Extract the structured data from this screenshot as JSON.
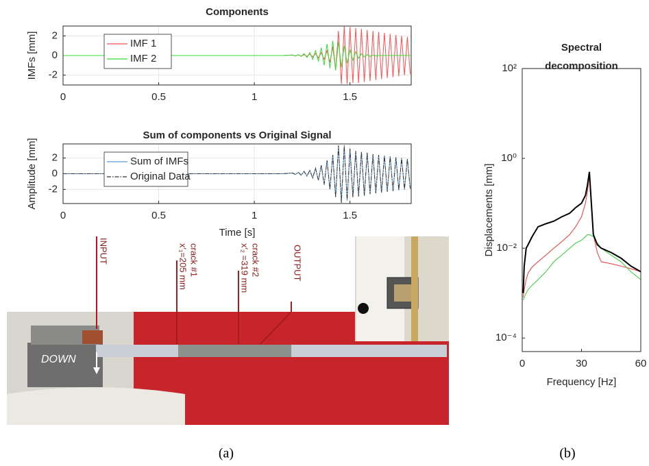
{
  "chart_data": [
    {
      "type": "line",
      "title": "Components",
      "ylabel": "IMFs [mm]",
      "x": [
        0,
        0.5,
        1,
        1.15,
        1.2,
        1.215,
        1.23,
        1.245,
        1.26,
        1.275,
        1.29,
        1.305,
        1.32,
        1.335,
        1.35,
        1.365,
        1.38,
        1.395,
        1.41,
        1.425,
        1.44,
        1.455,
        1.47,
        1.485,
        1.5,
        1.515,
        1.53,
        1.545,
        1.56,
        1.575,
        1.59,
        1.605,
        1.62,
        1.635,
        1.65,
        1.665,
        1.68,
        1.695,
        1.71,
        1.725,
        1.74,
        1.755,
        1.77,
        1.785,
        1.8,
        1.815
      ],
      "series": [
        {
          "name": "IMF 1",
          "color": "#ff4d4d",
          "values": [
            0,
            0,
            0,
            0,
            0.05,
            -0.05,
            0.08,
            -0.08,
            0.1,
            -0.1,
            0.15,
            -0.15,
            0.2,
            -0.25,
            0.3,
            -0.4,
            0.5,
            -0.7,
            0.9,
            -1.5,
            2.5,
            -2.9,
            3,
            -2.9,
            2.9,
            -2.8,
            2.8,
            -2.8,
            2.7,
            -2.7,
            2.6,
            -2.6,
            2.5,
            -2.5,
            2.4,
            -2.4,
            2.3,
            -2.3,
            2.2,
            -2.2,
            2.1,
            -2.1,
            2.0,
            -2.0,
            1.9,
            -1.9
          ]
        },
        {
          "name": "IMF 2",
          "color": "#33dd33",
          "values": [
            0,
            0,
            0,
            0,
            0.05,
            -0.05,
            0.1,
            -0.1,
            0.2,
            -0.2,
            0.3,
            -0.4,
            0.5,
            -0.6,
            0.8,
            -1,
            1.2,
            -1.3,
            1.5,
            -1.5,
            1.4,
            -1.2,
            1,
            -0.8,
            0.6,
            -0.5,
            0.4,
            -0.3,
            0.2,
            -0.15,
            0.1,
            -0.1,
            0.05,
            -0.05,
            0,
            0,
            0,
            0,
            0,
            0,
            0,
            0,
            0,
            0,
            0,
            0
          ]
        }
      ],
      "xlim": [
        0,
        1.82
      ],
      "xticks": [
        0,
        0.5,
        1,
        1.5
      ],
      "ylim": [
        -3,
        3
      ],
      "yticks": [
        -2,
        0,
        2
      ],
      "grid": true,
      "legend": "upper left"
    },
    {
      "type": "line",
      "title": "Sum of components vs Original Signal",
      "xlabel": "Time [s]",
      "ylabel": "Amplitude [mm]",
      "x": [
        0,
        0.5,
        1,
        1.15,
        1.2,
        1.215,
        1.23,
        1.245,
        1.26,
        1.275,
        1.29,
        1.305,
        1.32,
        1.335,
        1.35,
        1.365,
        1.38,
        1.395,
        1.41,
        1.425,
        1.44,
        1.455,
        1.47,
        1.485,
        1.5,
        1.515,
        1.53,
        1.545,
        1.56,
        1.575,
        1.59,
        1.605,
        1.62,
        1.635,
        1.65,
        1.665,
        1.68,
        1.695,
        1.71,
        1.725,
        1.74,
        1.755,
        1.77,
        1.785,
        1.8,
        1.815
      ],
      "series": [
        {
          "name": "Sum of IMFs",
          "color": "#5b9bd5",
          "linestyle": "solid",
          "values": [
            0,
            0,
            0,
            0,
            0.1,
            -0.1,
            0.18,
            -0.18,
            0.3,
            -0.3,
            0.45,
            -0.55,
            0.7,
            -0.85,
            1.1,
            -1.4,
            1.7,
            -2,
            2.4,
            -3,
            3.6,
            -3.7,
            3.6,
            -3.4,
            3.2,
            -3,
            2.9,
            -2.9,
            2.8,
            -2.8,
            2.7,
            -2.6,
            2.5,
            -2.5,
            2.4,
            -2.4,
            2.3,
            -2.3,
            2.2,
            -2.2,
            2.1,
            -2.1,
            2,
            -2,
            1.9,
            -1.9
          ]
        },
        {
          "name": "Original Data",
          "color": "#333333",
          "linestyle": "dashdot",
          "values": [
            0,
            0,
            0,
            0,
            0.1,
            -0.1,
            0.18,
            -0.18,
            0.3,
            -0.3,
            0.45,
            -0.55,
            0.7,
            -0.85,
            1.1,
            -1.4,
            1.7,
            -2,
            2.4,
            -3,
            3.6,
            -3.7,
            3.6,
            -3.4,
            3.2,
            -3,
            2.9,
            -2.9,
            2.8,
            -2.8,
            2.7,
            -2.6,
            2.5,
            -2.5,
            2.4,
            -2.4,
            2.3,
            -2.3,
            2.2,
            -2.2,
            2.1,
            -2.1,
            2,
            -2,
            1.9,
            -1.9
          ]
        }
      ],
      "xlim": [
        0,
        1.82
      ],
      "xticks": [
        0,
        0.5,
        1,
        1.5
      ],
      "ylim": [
        -3.8,
        3.8
      ],
      "yticks": [
        -2,
        0,
        2
      ],
      "grid": true,
      "legend": "upper left"
    },
    {
      "type": "line",
      "title": [
        "Spectral",
        "decomposition"
      ],
      "xlabel": "Frequency [Hz]",
      "ylabel": "Displacements [mm]",
      "x": [
        0.5,
        1,
        2,
        3,
        5,
        8,
        12,
        16,
        20,
        24,
        27,
        30,
        32,
        33,
        34,
        35,
        36,
        38,
        40,
        45,
        50,
        55,
        60
      ],
      "series": [
        {
          "color": "#ff3333",
          "values": [
            0.0008,
            0.0012,
            0.002,
            0.0028,
            0.0038,
            0.005,
            0.007,
            0.01,
            0.014,
            0.02,
            0.03,
            0.05,
            0.1,
            0.18,
            0.4,
            0.08,
            0.02,
            0.008,
            0.005,
            0.0045,
            0.004,
            0.0035,
            0.003
          ]
        },
        {
          "color": "#33cc33",
          "values": [
            0.0007,
            0.0008,
            0.001,
            0.0012,
            0.0015,
            0.002,
            0.003,
            0.005,
            0.007,
            0.01,
            0.013,
            0.015,
            0.018,
            0.02,
            0.02,
            0.019,
            0.018,
            0.013,
            0.01,
            0.007,
            0.005,
            0.003,
            0.002
          ]
        },
        {
          "color": "#000000",
          "values": [
            0.001,
            0.004,
            0.01,
            0.012,
            0.018,
            0.03,
            0.035,
            0.04,
            0.05,
            0.06,
            0.08,
            0.1,
            0.15,
            0.25,
            0.5,
            0.1,
            0.02,
            0.012,
            0.01,
            0.008,
            0.006,
            0.004,
            0.003
          ]
        }
      ],
      "xlim": [
        0,
        60
      ],
      "xticks": [
        0,
        30,
        60
      ],
      "ylim": [
        5e-05,
        100
      ],
      "log_y": true,
      "yticks": [
        {
          "value": 100,
          "label": "10²"
        },
        {
          "value": 1,
          "label": "10⁰"
        },
        {
          "value": 0.01,
          "label": "10⁻²"
        },
        {
          "value": 0.0001,
          "label": "10⁻⁴"
        }
      ],
      "grid": false
    }
  ],
  "photo": {
    "labels": [
      "INPUT",
      "crack #1",
      "x′₁=205 mm",
      "crack #2",
      "x′₂ =319 mm",
      "OUTPUT",
      "DOWN"
    ]
  },
  "captions": [
    "(a)",
    "(b)"
  ]
}
